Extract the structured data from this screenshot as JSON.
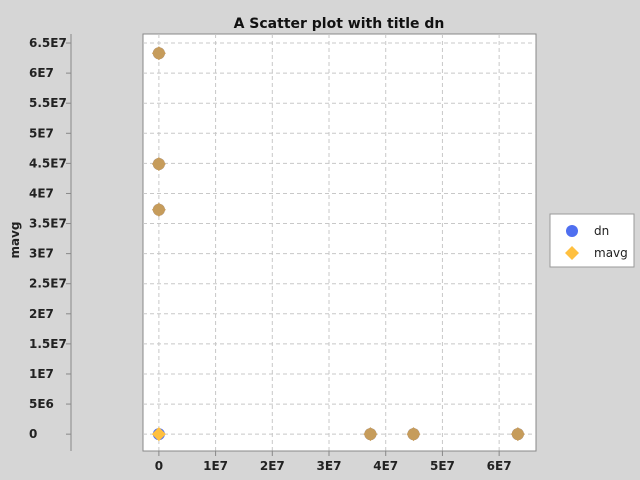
{
  "chart_data": {
    "type": "scatter",
    "title": "A Scatter plot with title dn",
    "xlabel": "",
    "ylabel": "mavg",
    "xlim": [
      -2800000,
      66500000
    ],
    "ylim": [
      -2800000,
      66500000
    ],
    "x_ticks": [
      {
        "value": 0,
        "label": "0"
      },
      {
        "value": 10000000,
        "label": "1E7"
      },
      {
        "value": 20000000,
        "label": "2E7"
      },
      {
        "value": 30000000,
        "label": "3E7"
      },
      {
        "value": 40000000,
        "label": "4E7"
      },
      {
        "value": 50000000,
        "label": "5E7"
      },
      {
        "value": 60000000,
        "label": "6E7"
      }
    ],
    "y_ticks": [
      {
        "value": 0,
        "label": "0"
      },
      {
        "value": 5000000,
        "label": "5E6"
      },
      {
        "value": 10000000,
        "label": "1E7"
      },
      {
        "value": 15000000,
        "label": "1.5E7"
      },
      {
        "value": 20000000,
        "label": "2E7"
      },
      {
        "value": 25000000,
        "label": "2.5E7"
      },
      {
        "value": 30000000,
        "label": "3E7"
      },
      {
        "value": 35000000,
        "label": "3.5E7"
      },
      {
        "value": 40000000,
        "label": "4E7"
      },
      {
        "value": 45000000,
        "label": "4.5E7"
      },
      {
        "value": 50000000,
        "label": "5E7"
      },
      {
        "value": 55000000,
        "label": "5.5E7"
      },
      {
        "value": 60000000,
        "label": "6E7"
      },
      {
        "value": 65000000,
        "label": "6.5E7"
      }
    ],
    "grid": true,
    "legend_position": "right",
    "series": [
      {
        "name": "dn",
        "color": "#4f6ff0",
        "marker": "circle",
        "points": [
          {
            "x": 0,
            "y": 0
          },
          {
            "x": 0,
            "y": 37300000
          },
          {
            "x": 0,
            "y": 44900000
          },
          {
            "x": 0,
            "y": 63300000
          },
          {
            "x": 37300000,
            "y": 0
          },
          {
            "x": 44900000,
            "y": 0
          },
          {
            "x": 63300000,
            "y": 0
          }
        ]
      },
      {
        "name": "mavg",
        "color": "#ffc040",
        "marker": "diamond",
        "points": [
          {
            "x": 0,
            "y": 0
          },
          {
            "x": 0,
            "y": 37300000
          },
          {
            "x": 0,
            "y": 44900000
          },
          {
            "x": 0,
            "y": 63300000
          },
          {
            "x": 37300000,
            "y": 0
          },
          {
            "x": 44900000,
            "y": 0
          },
          {
            "x": 63300000,
            "y": 0
          }
        ]
      }
    ],
    "overlap_color": "#c69c5b"
  }
}
